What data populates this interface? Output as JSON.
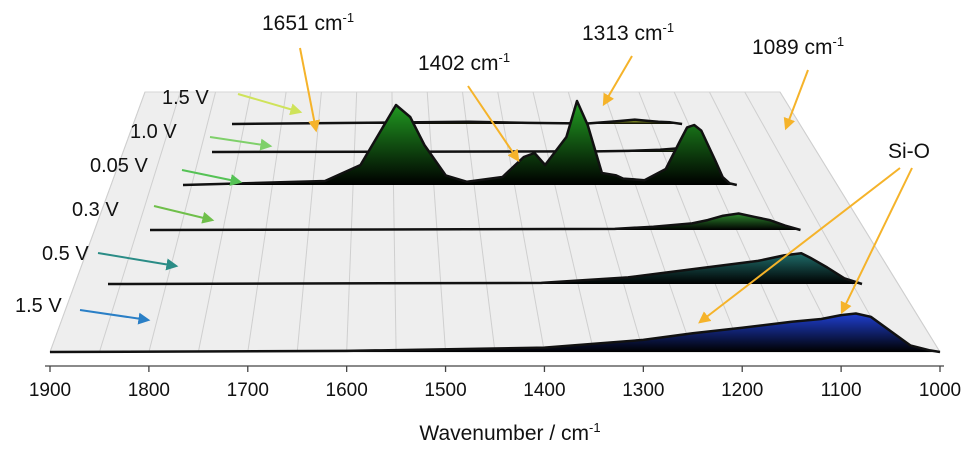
{
  "chart_data": {
    "type": "area",
    "title": "",
    "xlabel": "Wavenumber / cm",
    "xlabel_superscript": "-1",
    "ylabel": "",
    "xlim": [
      1900,
      1000
    ],
    "x_ticks": [
      "1900",
      "1800",
      "1700",
      "1600",
      "1500",
      "1400",
      "1300",
      "1200",
      "1100",
      "1000"
    ],
    "grid": true,
    "legend": "none",
    "series_note": "waterfall of spectra; series listed from front (bottom) to back (top)",
    "series": [
      {
        "name": "1.5 V",
        "color": "#1f3fd0",
        "arrow_color": "#2a7fc6",
        "x": [
          1900,
          1600,
          1400,
          1300,
          1250,
          1200,
          1150,
          1120,
          1100,
          1085,
          1070,
          1050,
          1030,
          1010,
          1000
        ],
        "y": [
          0,
          0.02,
          0.08,
          0.22,
          0.34,
          0.44,
          0.55,
          0.6,
          0.67,
          0.7,
          0.64,
          0.38,
          0.12,
          0.03,
          0
        ]
      },
      {
        "name": "0.5 V",
        "color": "#1f6d6a",
        "arrow_color": "#2a8c86",
        "x": [
          1900,
          1400,
          1300,
          1250,
          1200,
          1150,
          1120,
          1100,
          1090,
          1070,
          1050,
          1030
        ],
        "y": [
          0,
          0.02,
          0.12,
          0.22,
          0.32,
          0.42,
          0.52,
          0.56,
          0.48,
          0.3,
          0.1,
          0
        ]
      },
      {
        "name": "0.3 V",
        "color": "#2e8b2e",
        "arrow_color": "#6fbf4a",
        "x": [
          1900,
          1300,
          1250,
          1200,
          1180,
          1160,
          1140,
          1120,
          1100,
          1080,
          1060
        ],
        "y": [
          0,
          0.02,
          0.06,
          0.12,
          0.18,
          0.26,
          0.3,
          0.24,
          0.18,
          0.08,
          0
        ]
      },
      {
        "name": "0.05 V",
        "color": "#22a022",
        "arrow_color": "#55c255",
        "x": [
          1900,
          1700,
          1650,
          1620,
          1600,
          1580,
          1560,
          1530,
          1500,
          1450,
          1420,
          1405,
          1390,
          1360,
          1345,
          1330,
          1310,
          1290,
          1280,
          1250,
          1220,
          1200,
          1190,
          1180,
          1170,
          1150,
          1140,
          1130,
          1120
        ],
        "y": [
          0,
          0.05,
          0.25,
          0.7,
          1.0,
          0.85,
          0.5,
          0.12,
          0.04,
          0.1,
          0.35,
          0.4,
          0.25,
          0.6,
          1.05,
          0.75,
          0.15,
          0.12,
          0.08,
          0.06,
          0.2,
          0.55,
          0.72,
          0.75,
          0.68,
          0.3,
          0.1,
          0.02,
          0
        ]
      },
      {
        "name": "1.0 V",
        "color": "#7cc242",
        "arrow_color": "#7fd06a",
        "x": [
          1900,
          1300,
          1250,
          1200,
          1180,
          1160,
          1140,
          1130
        ],
        "y": [
          0,
          0.01,
          0.02,
          0.04,
          0.06,
          0.08,
          0.06,
          0
        ]
      },
      {
        "name": "1.5 V",
        "color": "#c8d83a",
        "arrow_color": "#cfe35a",
        "x": [
          1900,
          1500,
          1400,
          1300,
          1250,
          1220,
          1200,
          1180,
          1160,
          1140
        ],
        "y": [
          0,
          0.04,
          0.02,
          0.01,
          0.05,
          0.08,
          0.06,
          0.04,
          0.03,
          0
        ]
      }
    ],
    "annotations": [
      {
        "label": "1651 cm",
        "sup": "-1",
        "target_x": 1651
      },
      {
        "label": "1402 cm",
        "sup": "-1",
        "target_x": 1402
      },
      {
        "label": "1313 cm",
        "sup": "-1",
        "target_x": 1313
      },
      {
        "label": "1089 cm",
        "sup": "-1",
        "target_x": 1089
      },
      {
        "label": "Si-O",
        "sup": "",
        "target_x": 1089
      }
    ],
    "annotation_arrow_color": "#f5b32a"
  }
}
